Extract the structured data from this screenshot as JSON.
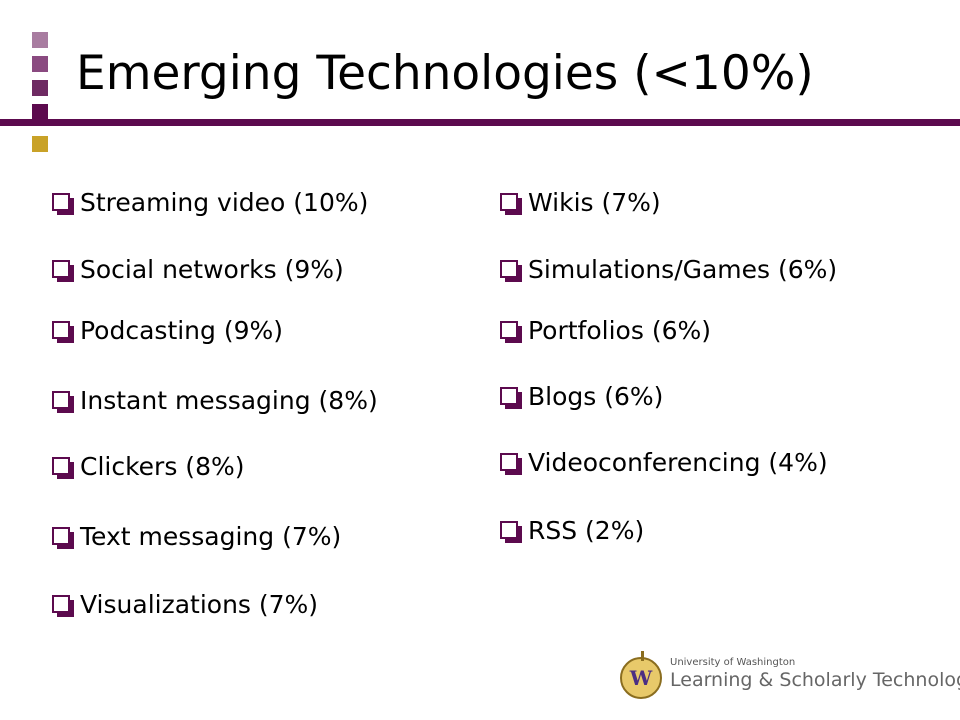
{
  "slide": {
    "title": "Emerging Technologies (<10%)",
    "accent_color": "#5c0a4e",
    "decor_colors": [
      "#a87ca0",
      "#8a4a80",
      "#6e2a62",
      "#5c0a4e",
      "#c9a227"
    ],
    "left_items": [
      "Streaming video (10%)",
      "Social networks (9%)",
      "Podcasting (9%)",
      "Instant messaging (8%)",
      "Clickers (8%)",
      "Text messaging (7%)",
      "Visualizations (7%)"
    ],
    "right_items": [
      "Wikis (7%)",
      "Simulations/Games (6%)",
      "Portfolios (6%)",
      "Blogs (6%)",
      "Videoconferencing (4%)",
      "RSS (2%)"
    ]
  },
  "logo": {
    "seal_letter": "W",
    "line1": "University of Washington",
    "line2": "Learning & Scholarly Technologies"
  }
}
